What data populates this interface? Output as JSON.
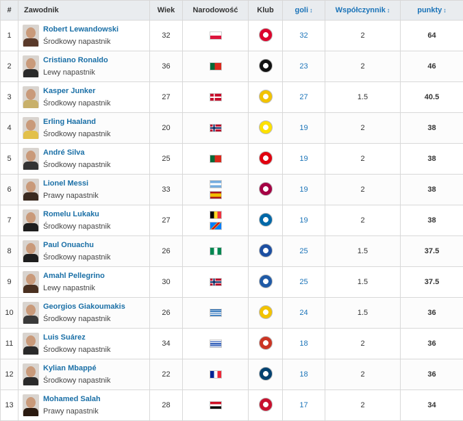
{
  "headers": {
    "rank": "#",
    "player": "Zawodnik",
    "age": "Wiek",
    "nationality": "Narodowość",
    "club": "Klub",
    "goals": "goli",
    "coef": "Współczynnik",
    "points": "punkty",
    "sort_icon": "↕"
  },
  "rows": [
    {
      "rank": "1",
      "name": "Robert Lewandowski",
      "position": "Środkowy napastnik",
      "age": "32",
      "flags": [
        "poland-flag"
      ],
      "club_icon": "bayern-munich-crest",
      "club_color": "#dc052d",
      "goals": "32",
      "coef": "2",
      "points": "64",
      "avatar_color": "#5a3a2a"
    },
    {
      "rank": "2",
      "name": "Cristiano Ronaldo",
      "position": "Lewy napastnik",
      "age": "36",
      "flags": [
        "portugal-flag"
      ],
      "club_icon": "juventus-crest",
      "club_color": "#111111",
      "goals": "23",
      "coef": "2",
      "points": "46",
      "avatar_color": "#2a2a2a"
    },
    {
      "rank": "3",
      "name": "Kasper Junker",
      "position": "Środkowy napastnik",
      "age": "27",
      "flags": [
        "denmark-flag"
      ],
      "club_icon": "bodo-glimt-crest",
      "club_color": "#f2c300",
      "goals": "27",
      "coef": "1.5",
      "points": "40.5",
      "avatar_color": "#c8b06a"
    },
    {
      "rank": "4",
      "name": "Erling Haaland",
      "position": "Środkowy napastnik",
      "age": "20",
      "flags": [
        "norway-flag"
      ],
      "club_icon": "borussia-dortmund-crest",
      "club_color": "#fde100",
      "goals": "19",
      "coef": "2",
      "points": "38",
      "avatar_color": "#e2c04a"
    },
    {
      "rank": "5",
      "name": "André Silva",
      "position": "Środkowy napastnik",
      "age": "25",
      "flags": [
        "portugal-flag"
      ],
      "club_icon": "eintracht-frankfurt-crest",
      "club_color": "#e1000f",
      "goals": "19",
      "coef": "2",
      "points": "38",
      "avatar_color": "#333333"
    },
    {
      "rank": "6",
      "name": "Lionel Messi",
      "position": "Prawy napastnik",
      "age": "33",
      "flags": [
        "argentina-flag",
        "spain-flag"
      ],
      "club_icon": "fc-barcelona-crest",
      "club_color": "#a50044",
      "goals": "19",
      "coef": "2",
      "points": "38",
      "avatar_color": "#3a2a20"
    },
    {
      "rank": "7",
      "name": "Romelu Lukaku",
      "position": "Środkowy napastnik",
      "age": "27",
      "flags": [
        "belgium-flag",
        "dr-congo-flag"
      ],
      "club_icon": "inter-milan-crest",
      "club_color": "#0068a8",
      "goals": "19",
      "coef": "2",
      "points": "38",
      "avatar_color": "#1e1e1e"
    },
    {
      "rank": "8",
      "name": "Paul Onuachu",
      "position": "Środkowy napastnik",
      "age": "26",
      "flags": [
        "nigeria-flag"
      ],
      "club_icon": "genk-crest",
      "club_color": "#1c4fa1",
      "goals": "25",
      "coef": "1.5",
      "points": "37.5",
      "avatar_color": "#1e1e1e"
    },
    {
      "rank": "9",
      "name": "Amahl Pellegrino",
      "position": "Lewy napastnik",
      "age": "30",
      "flags": [
        "norway-flag"
      ],
      "club_icon": "kristiansund-crest",
      "club_color": "#1f5aa6",
      "goals": "25",
      "coef": "1.5",
      "points": "37.5",
      "avatar_color": "#4a3020"
    },
    {
      "rank": "10",
      "name": "Georgios Giakoumakis",
      "position": "Środkowy napastnik",
      "age": "26",
      "flags": [
        "greece-flag"
      ],
      "club_icon": "vvv-venlo-crest",
      "club_color": "#f2c300",
      "goals": "24",
      "coef": "1.5",
      "points": "36",
      "avatar_color": "#3a3a3a"
    },
    {
      "rank": "11",
      "name": "Luis Suárez",
      "position": "Środkowy napastnik",
      "age": "34",
      "flags": [
        "uruguay-flag"
      ],
      "club_icon": "atletico-madrid-crest",
      "club_color": "#cb3524",
      "goals": "18",
      "coef": "2",
      "points": "36",
      "avatar_color": "#2a2a2a"
    },
    {
      "rank": "12",
      "name": "Kylian Mbappé",
      "position": "Środkowy napastnik",
      "age": "22",
      "flags": [
        "france-flag"
      ],
      "club_icon": "psg-crest",
      "club_color": "#004170",
      "goals": "18",
      "coef": "2",
      "points": "36",
      "avatar_color": "#2a2a2a"
    },
    {
      "rank": "13",
      "name": "Mohamed Salah",
      "position": "Prawy napastnik",
      "age": "28",
      "flags": [
        "egypt-flag"
      ],
      "club_icon": "liverpool-crest",
      "club_color": "#c8102e",
      "goals": "17",
      "coef": "2",
      "points": "34",
      "avatar_color": "#2a1a10"
    }
  ],
  "colors": {
    "link": "#1a6fa6",
    "header_bg": "#e9ecef",
    "border": "#d8d8d8"
  }
}
